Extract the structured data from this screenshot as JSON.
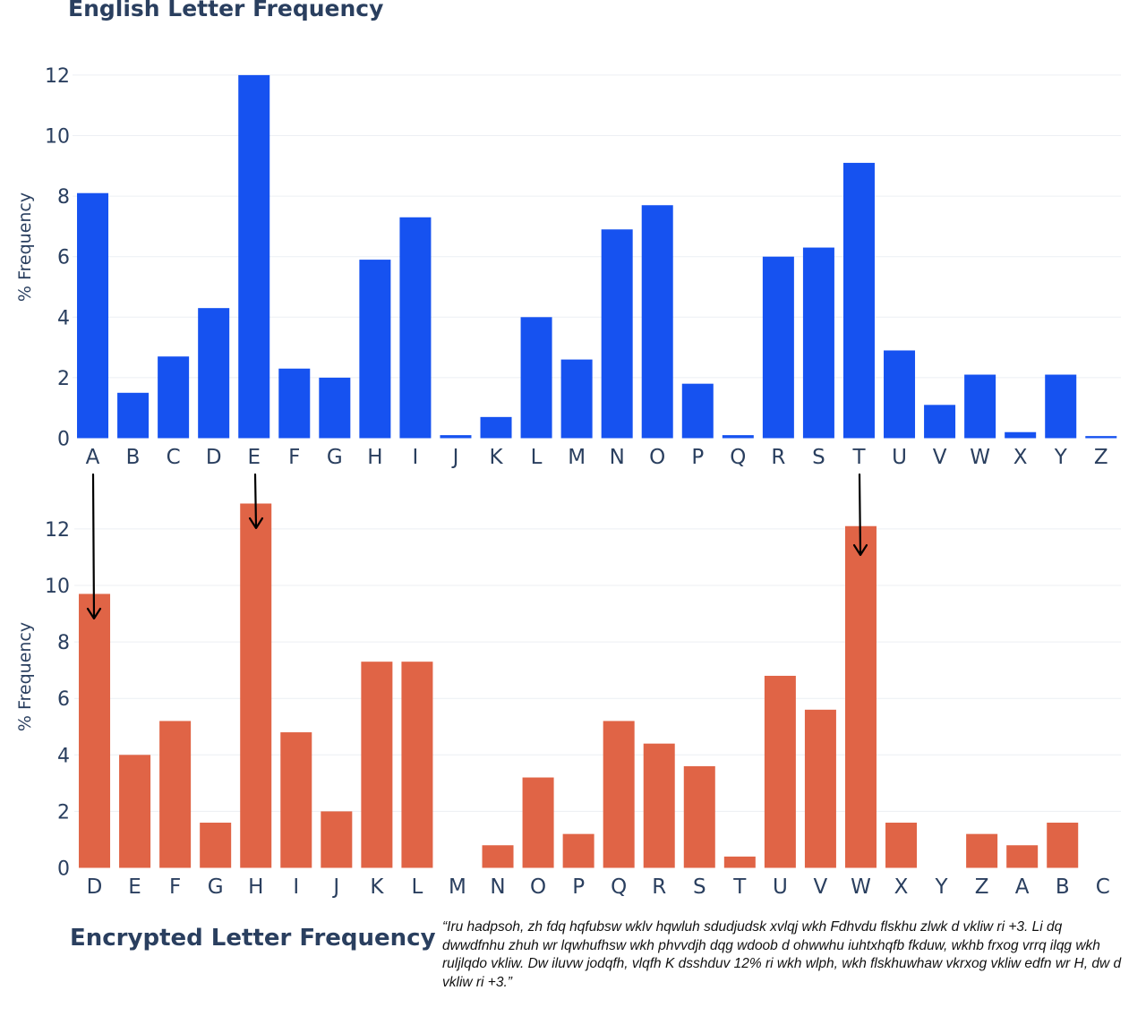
{
  "chart_data": [
    {
      "type": "bar",
      "title": "English Letter Frequency",
      "ylabel": "% Frequency",
      "xlabel": "",
      "ylim": [
        0,
        12.2
      ],
      "yticks": [
        0,
        2,
        4,
        6,
        8,
        10,
        12
      ],
      "grid": true,
      "color": "#1652f0",
      "categories": [
        "A",
        "B",
        "C",
        "D",
        "E",
        "F",
        "G",
        "H",
        "I",
        "J",
        "K",
        "L",
        "M",
        "N",
        "O",
        "P",
        "Q",
        "R",
        "S",
        "T",
        "U",
        "V",
        "W",
        "X",
        "Y",
        "Z"
      ],
      "values": [
        8.1,
        1.5,
        2.7,
        4.3,
        12.0,
        2.3,
        2.0,
        5.9,
        7.3,
        0.1,
        0.7,
        4.0,
        2.6,
        6.9,
        7.7,
        1.8,
        0.1,
        6.0,
        6.3,
        9.1,
        2.9,
        1.1,
        2.1,
        0.2,
        2.1,
        0.07
      ]
    },
    {
      "type": "bar",
      "title": "Encrypted Letter Frequency",
      "ylabel": "% Frequency",
      "xlabel": "",
      "ylim": [
        0,
        13.2
      ],
      "yticks": [
        0,
        2,
        4,
        6,
        8,
        10,
        12
      ],
      "grid": true,
      "color": "#e06446",
      "categories": [
        "D",
        "E",
        "F",
        "G",
        "H",
        "I",
        "J",
        "K",
        "L",
        "M",
        "N",
        "O",
        "P",
        "Q",
        "R",
        "S",
        "T",
        "U",
        "V",
        "W",
        "X",
        "Y",
        "Z",
        "A",
        "B",
        "C"
      ],
      "values": [
        9.7,
        4.0,
        5.2,
        1.6,
        12.9,
        4.8,
        2.0,
        7.3,
        7.3,
        0.0,
        0.8,
        3.2,
        1.2,
        5.2,
        4.4,
        3.6,
        0.4,
        6.8,
        5.6,
        12.1,
        1.6,
        0.0,
        1.2,
        0.8,
        1.6,
        0.0
      ]
    }
  ],
  "caption": "“Iru hadpsoh, zh fdq hqfubsw wklv hqwluh sdudjudsk xvlqj wkh Fdhvdu flskhu zlwk d vkliw ri +3. Li dq dwwdfnhu zhuh wr lqwhufhsw wkh phvvdjh dqg wdoob d ohwwhu iuhtxhqfb fkduw, wkhb frxog vrrq ilqg wkh ruljlqdo vkliw. Dw iluvw jodqfh, vlqfh K dsshduv 12% ri wkh wlph, wkh flskhuwhaw vkrxog vkliw edfn wr H, dw d vkliw ri +3.”",
  "arrow_icon": "down-arrow-icon"
}
